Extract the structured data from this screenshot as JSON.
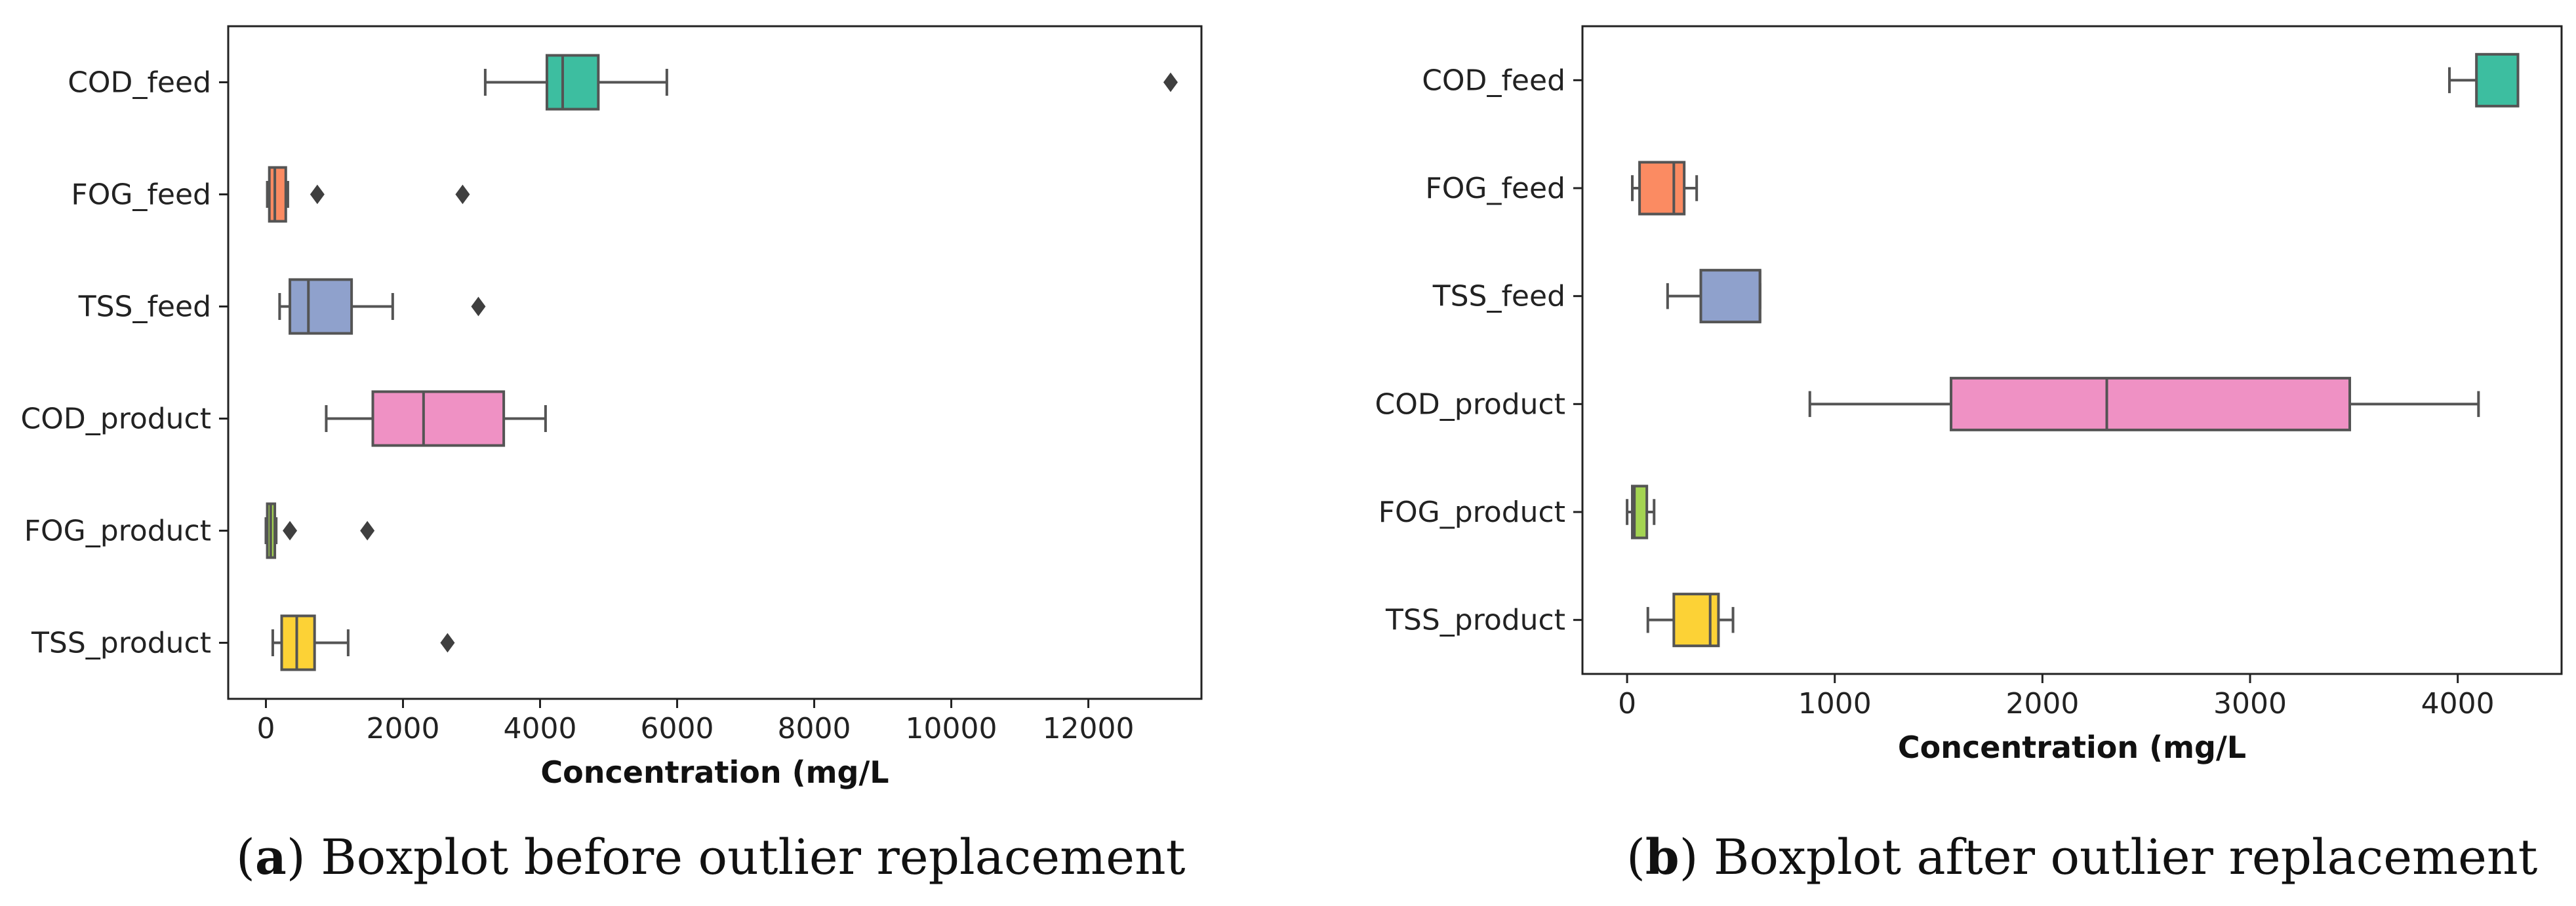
{
  "chart_data": [
    {
      "type": "box",
      "orientation": "horizontal",
      "panel": "a",
      "xlabel": "Concentration (mg/L",
      "xlim": [
        -550,
        13650
      ],
      "xticks": [
        0,
        2000,
        4000,
        6000,
        8000,
        10000,
        12000
      ],
      "xtick_labels": [
        "0",
        "2000",
        "4000",
        "6000",
        "8000",
        "10000",
        "12000"
      ],
      "categories": [
        "COD_feed",
        "FOG_feed",
        "TSS_feed",
        "COD_product",
        "FOG_product",
        "TSS_product"
      ],
      "series": [
        {
          "name": "COD_feed",
          "color": "#3dbea0",
          "whisker_low": 3200,
          "q1": 4100,
          "median": 4330,
          "q3": 4850,
          "whisker_high": 5850,
          "outliers": [
            13200
          ]
        },
        {
          "name": "FOG_feed",
          "color": "#fb8b62",
          "whisker_low": 20,
          "q1": 50,
          "median": 130,
          "q3": 290,
          "whisker_high": 320,
          "outliers": [
            750,
            2870
          ]
        },
        {
          "name": "TSS_feed",
          "color": "#8fa1cc",
          "whisker_low": 200,
          "q1": 350,
          "median": 620,
          "q3": 1250,
          "whisker_high": 1850,
          "outliers": [
            3100
          ]
        },
        {
          "name": "COD_product",
          "color": "#ef91c4",
          "whisker_low": 880,
          "q1": 1560,
          "median": 2300,
          "q3": 3470,
          "whisker_high": 4080,
          "outliers": []
        },
        {
          "name": "FOG_product",
          "color": "#a4d452",
          "whisker_low": 0,
          "q1": 20,
          "median": 70,
          "q3": 130,
          "whisker_high": 150,
          "outliers": [
            350,
            1480
          ]
        },
        {
          "name": "TSS_product",
          "color": "#fcd236",
          "whisker_low": 100,
          "q1": 230,
          "median": 450,
          "q3": 710,
          "whisker_high": 1200,
          "outliers": [
            2650
          ]
        }
      ]
    },
    {
      "type": "box",
      "orientation": "horizontal",
      "panel": "b",
      "xlabel": "Concentration (mg/L",
      "xlim": [
        -215,
        4500
      ],
      "xticks": [
        0,
        1000,
        2000,
        3000,
        4000
      ],
      "xtick_labels": [
        "0",
        "1000",
        "2000",
        "3000",
        "4000"
      ],
      "categories": [
        "COD_feed",
        "FOG_feed",
        "TSS_feed",
        "COD_product",
        "FOG_product",
        "TSS_product"
      ],
      "series": [
        {
          "name": "COD_feed",
          "color": "#3dbea0",
          "whisker_low": 3960,
          "q1": 4090,
          "median": 4290,
          "q3": 4290,
          "whisker_high": 4290,
          "outliers": []
        },
        {
          "name": "FOG_feed",
          "color": "#fb8b62",
          "whisker_low": 25,
          "q1": 60,
          "median": 225,
          "q3": 275,
          "whisker_high": 335,
          "outliers": []
        },
        {
          "name": "TSS_feed",
          "color": "#8fa1cc",
          "whisker_low": 195,
          "q1": 355,
          "median": 640,
          "q3": 640,
          "whisker_high": 640,
          "outliers": []
        },
        {
          "name": "COD_product",
          "color": "#ef91c4",
          "whisker_low": 880,
          "q1": 1560,
          "median": 2310,
          "q3": 3480,
          "whisker_high": 4100,
          "outliers": []
        },
        {
          "name": "FOG_product",
          "color": "#a4d452",
          "whisker_low": 0,
          "q1": 25,
          "median": 35,
          "q3": 95,
          "whisker_high": 130,
          "outliers": []
        },
        {
          "name": "TSS_product",
          "color": "#fcd236",
          "whisker_low": 100,
          "q1": 225,
          "median": 400,
          "q3": 440,
          "whisker_high": 510,
          "outliers": []
        }
      ]
    }
  ],
  "captions": [
    {
      "letter": "a",
      "text": "Boxplot before outlier replacement"
    },
    {
      "letter": "b",
      "text": "Boxplot after outlier replacement"
    }
  ]
}
